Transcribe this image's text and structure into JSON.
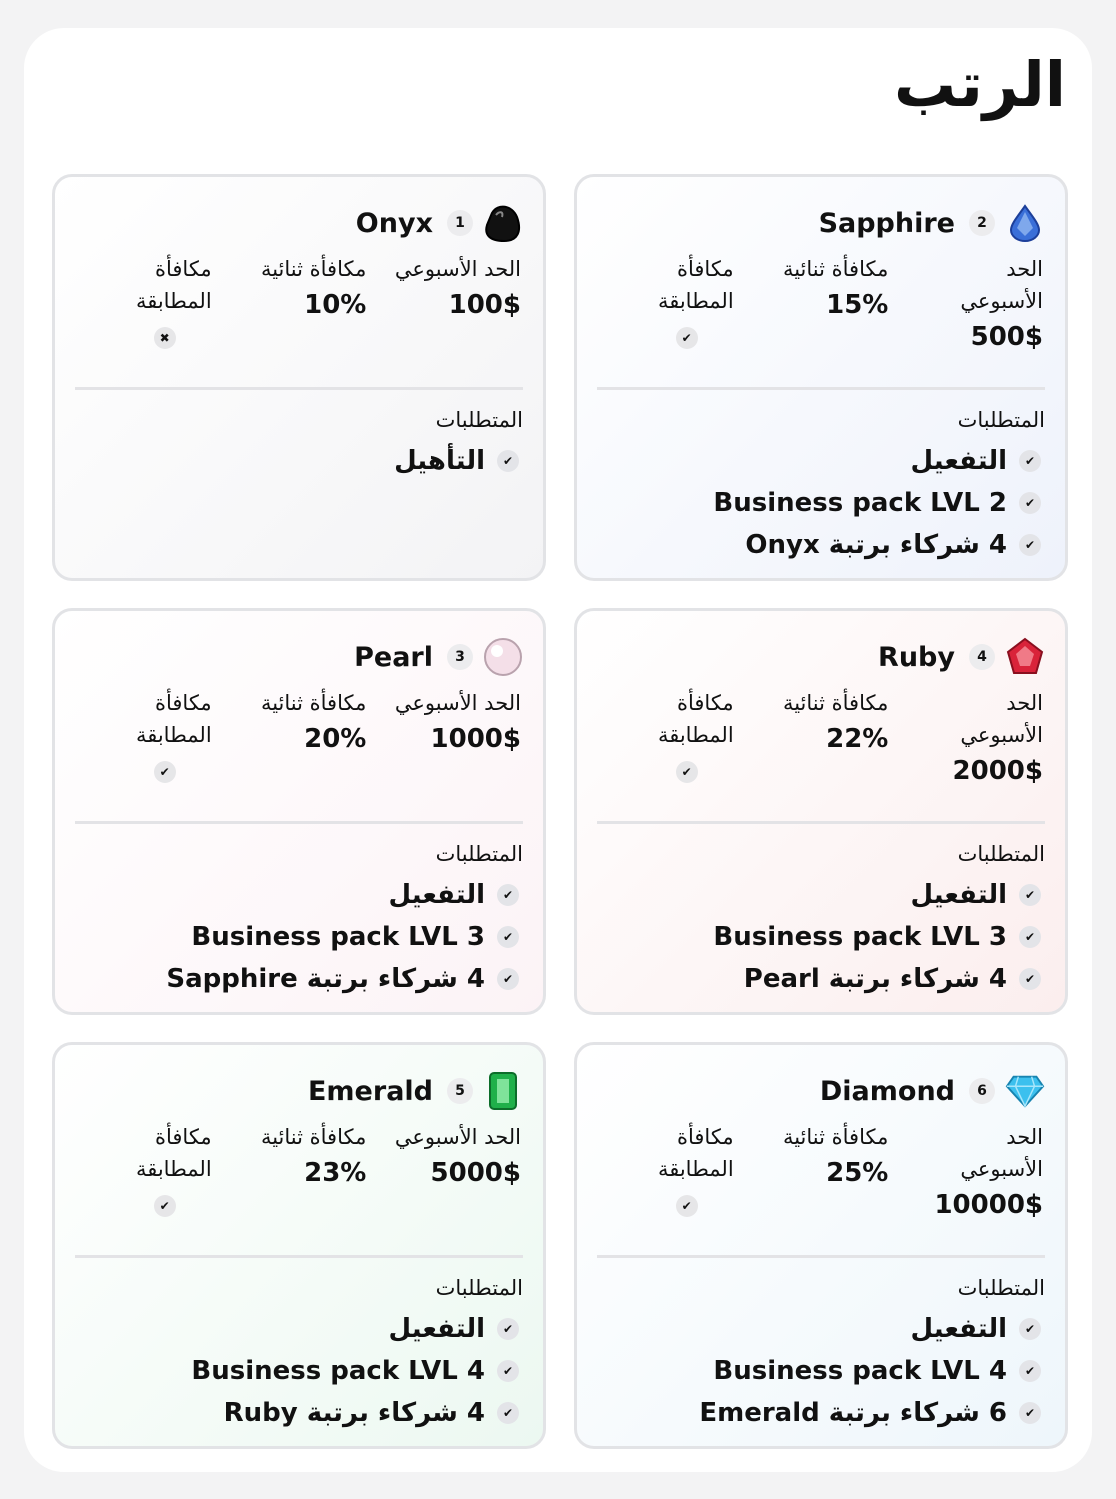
{
  "title": "الرتب",
  "labels": {
    "weekly": "الحد الأسبوعي",
    "binary": "مكافأة ثنائية",
    "match": "مكافأة المطابقة",
    "requirements": "المتطلبات"
  },
  "ranks": [
    {
      "name": "Sapphire",
      "rank": "2",
      "weekly": "500$",
      "binary": "15%",
      "match_icon": "check-icon",
      "gem": "sapphire",
      "bg": "#eef2fb",
      "reqs": [
        "التفعيل",
        "Business pack LVL 2",
        "4 شركاء برتبة Onyx"
      ]
    },
    {
      "name": "Onyx",
      "rank": "1",
      "weekly": "100$",
      "binary": "10%",
      "match_icon": "x-icon",
      "gem": "onyx",
      "bg": "#f3f3f5",
      "reqs": [
        "التأهيل"
      ]
    },
    {
      "name": "Ruby",
      "rank": "4",
      "weekly": "2000$",
      "binary": "22%",
      "match_icon": "check-icon",
      "gem": "ruby",
      "bg": "#fbeeee",
      "reqs": [
        "التفعيل",
        "Business pack LVL 3",
        "4 شركاء برتبة Pearl"
      ]
    },
    {
      "name": "Pearl",
      "rank": "3",
      "weekly": "1000$",
      "binary": "20%",
      "match_icon": "check-icon",
      "gem": "pearl",
      "bg": "#fcf3f6",
      "reqs": [
        "التفعيل",
        "Business pack LVL 3",
        "4 شركاء برتبة Sapphire"
      ]
    },
    {
      "name": "Diamond",
      "rank": "6",
      "weekly": "10000$",
      "binary": "25%",
      "match_icon": "check-icon",
      "gem": "diamond",
      "bg": "#eef6fb",
      "reqs": [
        "التفعيل",
        "Business pack LVL 4",
        "6 شركاء برتبة Emerald"
      ]
    },
    {
      "name": "Emerald",
      "rank": "5",
      "weekly": "5000$",
      "binary": "23%",
      "match_icon": "check-icon",
      "gem": "emerald",
      "bg": "#ecf8f1",
      "reqs": [
        "التفعيل",
        "Business pack LVL 4",
        "4 شركاء برتبة Ruby"
      ]
    }
  ]
}
